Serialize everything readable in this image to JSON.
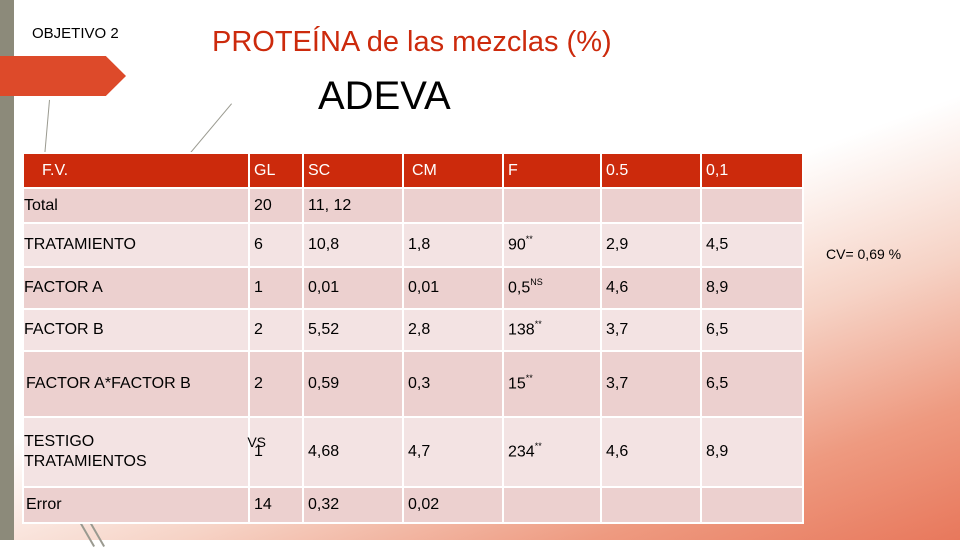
{
  "objective_label": "OBJETIVO 2",
  "title": "PROTEÍNA de las mezclas (%)",
  "subtitle": "ADEVA",
  "cv_note": "CV= 0,69 %",
  "colors": {
    "header_bg": "#cc2a0c",
    "title_red": "#cc2a0c",
    "row_even": "#ecd0cf",
    "row_odd": "#f3e3e3",
    "accent_arrow": "#dd4a2a"
  },
  "table": {
    "headers": [
      "F.V.",
      "GL",
      "SC",
      "CM",
      "F",
      "0.5",
      "0,1"
    ],
    "rows": [
      {
        "fv": "Total",
        "gl": "20",
        "sc": "11, 12",
        "cm": "",
        "f": "",
        "f_sup": "",
        "p05": "",
        "p01": ""
      },
      {
        "fv": "TRATAMIENTO",
        "gl": "6",
        "sc": "10,8",
        "cm": "1,8",
        "f": "90",
        "f_sup": "**",
        "p05": "2,9",
        "p01": "4,5"
      },
      {
        "fv": "FACTOR A",
        "gl": "1",
        "sc": "0,01",
        "cm": "0,01",
        "f": "0,5",
        "f_sup": "NS",
        "p05": "4,6",
        "p01": "8,9"
      },
      {
        "fv": "FACTOR B",
        "gl": "2",
        "sc": "5,52",
        "cm": "2,8",
        "f": "138",
        "f_sup": "**",
        "p05": "3,7",
        "p01": "6,5"
      },
      {
        "fv": "FACTOR A*FACTOR B",
        "gl": "2",
        "sc": "0,59",
        "cm": "0,3",
        "f": "15",
        "f_sup": "**",
        "p05": "3,7",
        "p01": "6,5"
      },
      {
        "fv_line1": "TESTIGO",
        "fv_vs": "VS",
        "fv_line2": "TRATAMIENTOS",
        "gl": "1",
        "sc": "4,68",
        "cm": "4,7",
        "f": "234",
        "f_sup": "**",
        "p05": "4,6",
        "p01": "8,9"
      },
      {
        "fv": "Error",
        "gl": "14",
        "sc": "0,32",
        "cm": "0,02",
        "f": "",
        "f_sup": "",
        "p05": "",
        "p01": ""
      }
    ]
  }
}
